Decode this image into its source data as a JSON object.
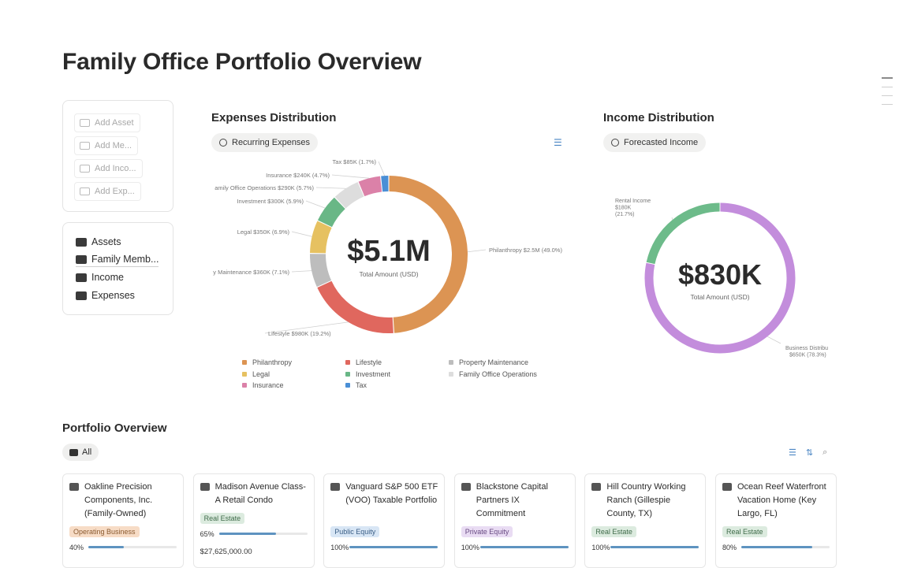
{
  "page": {
    "title": "Family Office Portfolio Overview"
  },
  "quick_actions": [
    {
      "label": "Add Asset",
      "icon": "briefcase-icon"
    },
    {
      "label": "Add Me...",
      "icon": "family-icon"
    },
    {
      "label": "Add Inco...",
      "icon": "cash-icon"
    },
    {
      "label": "Add Exp...",
      "icon": "money-icon"
    }
  ],
  "nav": [
    {
      "label": "Assets",
      "icon": "briefcase-icon"
    },
    {
      "label": "Family Memb...",
      "icon": "family-icon"
    },
    {
      "label": "Income",
      "icon": "cash-icon"
    },
    {
      "label": "Expenses",
      "icon": "money-icon"
    }
  ],
  "expenses": {
    "title": "Expenses Distribution",
    "chip": "Recurring Expenses",
    "center_value": "$5.1M",
    "center_label": "Total Amount (USD)",
    "chart_data": {
      "type": "pie",
      "values": [
        2.5,
        0.98,
        0.36,
        0.35,
        0.3,
        0.29,
        0.24,
        0.085
      ],
      "slices": [
        {
          "name": "Philanthropy",
          "label": "Philanthropy  $2.5M (49.0%)",
          "value": 2500000,
          "color": "#dc9453"
        },
        {
          "name": "Lifestyle",
          "label": "Lifestyle  $980K (19.2%)",
          "value": 980000,
          "color": "#e0675e"
        },
        {
          "name": "Property Maintenance",
          "label": "y Maintenance  $360K (7.1%)",
          "value": 360000,
          "color": "#bdbdbd"
        },
        {
          "name": "Legal",
          "label": "Legal  $350K (6.9%)",
          "value": 350000,
          "color": "#e6c161"
        },
        {
          "name": "Investment",
          "label": "Investment  $300K (5.9%)",
          "value": 300000,
          "color": "#69b786"
        },
        {
          "name": "Family Office Operations",
          "label": "amily Office Operations  $290K (5.7%)",
          "value": 290000,
          "color": "#dddddd"
        },
        {
          "name": "Insurance",
          "label": "Insurance  $240K (4.7%)",
          "value": 240000,
          "color": "#db81a8"
        },
        {
          "name": "Tax",
          "label": "Tax  $85K (1.7%)",
          "value": 85000,
          "color": "#4a8fd6"
        }
      ]
    },
    "legend": [
      "Philanthropy",
      "Lifestyle",
      "Property Maintenance",
      "Legal",
      "Investment",
      "Family Office Operations",
      "Insurance",
      "Tax"
    ]
  },
  "income": {
    "title": "Income Distribution",
    "chip": "Forecasted Income",
    "center_value": "$830K",
    "center_label": "Total Amount (USD)",
    "chart_data": {
      "type": "pie",
      "values": [
        650000,
        180000
      ],
      "slices": [
        {
          "name": "Business Distribu",
          "label_lines": [
            "Business Distribu",
            "$650K (78.3%)"
          ],
          "value": 650000,
          "color": "#c38ddc"
        },
        {
          "name": "Rental Income",
          "label_lines": [
            "Rental Income",
            "$180K",
            "(21.7%)"
          ],
          "value": 180000,
          "color": "#6dbb8a"
        }
      ]
    }
  },
  "portfolio": {
    "title": "Portfolio Overview",
    "filter": "All",
    "cards": [
      {
        "name": "Oakline Precision Components, Inc. (Family-Owned)",
        "tag": "Operating Business",
        "tag_bg": "#f7dcc6",
        "tag_fg": "#8a5a30",
        "progress": 40,
        "progress_label": "40%",
        "amount": ""
      },
      {
        "name": "Madison Avenue Class-A Retail Condo",
        "tag": "Real Estate",
        "tag_bg": "#dcebdf",
        "tag_fg": "#3f6b4a",
        "progress": 65,
        "progress_label": "65%",
        "amount": "$27,625,000.00"
      },
      {
        "name": "Vanguard S&P 500 ETF (VOO) Taxable Portfolio",
        "tag": "Public Equity",
        "tag_bg": "#d8e6f5",
        "tag_fg": "#3b5f86",
        "progress": 100,
        "progress_label": "100%",
        "amount": ""
      },
      {
        "name": "Blackstone Capital Partners IX Commitment",
        "tag": "Private Equity",
        "tag_bg": "#e9dcf3",
        "tag_fg": "#684a82",
        "progress": 100,
        "progress_label": "100%",
        "amount": ""
      },
      {
        "name": "Hill Country Working Ranch (Gillespie County, TX)",
        "tag": "Real Estate",
        "tag_bg": "#dcebdf",
        "tag_fg": "#3f6b4a",
        "progress": 100,
        "progress_label": "100%",
        "amount": ""
      },
      {
        "name": "Ocean Reef Waterfront Vacation Home (Key Largo, FL)",
        "tag": "Real Estate",
        "tag_bg": "#dcebdf",
        "tag_fg": "#3f6b4a",
        "progress": 80,
        "progress_label": "80%",
        "amount": ""
      }
    ]
  }
}
